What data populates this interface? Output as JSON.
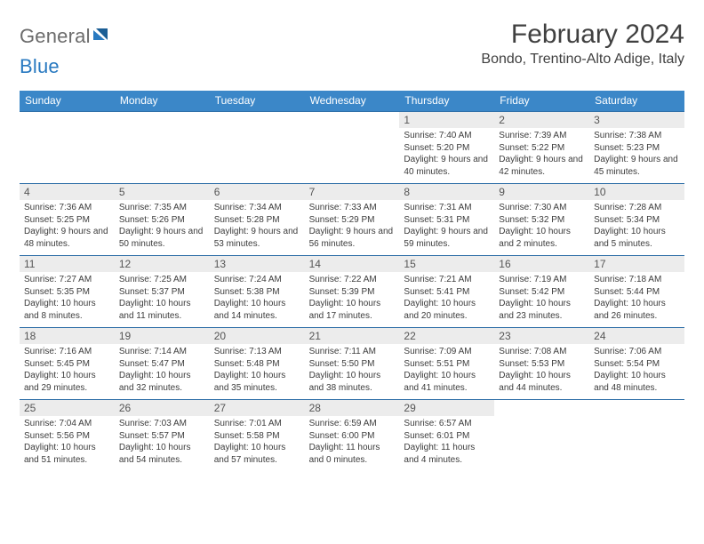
{
  "brand": {
    "word1": "General",
    "word2": "Blue"
  },
  "title": "February 2024",
  "location": "Bondo, Trentino-Alto Adige, Italy",
  "colors": {
    "header_bar": "#3b87c8",
    "week_divider": "#2f6fa8",
    "date_strip": "#ececec",
    "text": "#333333",
    "brand_gray": "#6b6b6b",
    "brand_blue": "#2879c0"
  },
  "layout": {
    "columns": 7,
    "rows": 5
  },
  "weekdays": [
    "Sunday",
    "Monday",
    "Tuesday",
    "Wednesday",
    "Thursday",
    "Friday",
    "Saturday"
  ],
  "weeks": [
    [
      null,
      null,
      null,
      null,
      {
        "n": "1",
        "sr": "7:40 AM",
        "ss": "5:20 PM",
        "dl": "9 hours and 40 minutes."
      },
      {
        "n": "2",
        "sr": "7:39 AM",
        "ss": "5:22 PM",
        "dl": "9 hours and 42 minutes."
      },
      {
        "n": "3",
        "sr": "7:38 AM",
        "ss": "5:23 PM",
        "dl": "9 hours and 45 minutes."
      }
    ],
    [
      {
        "n": "4",
        "sr": "7:36 AM",
        "ss": "5:25 PM",
        "dl": "9 hours and 48 minutes."
      },
      {
        "n": "5",
        "sr": "7:35 AM",
        "ss": "5:26 PM",
        "dl": "9 hours and 50 minutes."
      },
      {
        "n": "6",
        "sr": "7:34 AM",
        "ss": "5:28 PM",
        "dl": "9 hours and 53 minutes."
      },
      {
        "n": "7",
        "sr": "7:33 AM",
        "ss": "5:29 PM",
        "dl": "9 hours and 56 minutes."
      },
      {
        "n": "8",
        "sr": "7:31 AM",
        "ss": "5:31 PM",
        "dl": "9 hours and 59 minutes."
      },
      {
        "n": "9",
        "sr": "7:30 AM",
        "ss": "5:32 PM",
        "dl": "10 hours and 2 minutes."
      },
      {
        "n": "10",
        "sr": "7:28 AM",
        "ss": "5:34 PM",
        "dl": "10 hours and 5 minutes."
      }
    ],
    [
      {
        "n": "11",
        "sr": "7:27 AM",
        "ss": "5:35 PM",
        "dl": "10 hours and 8 minutes."
      },
      {
        "n": "12",
        "sr": "7:25 AM",
        "ss": "5:37 PM",
        "dl": "10 hours and 11 minutes."
      },
      {
        "n": "13",
        "sr": "7:24 AM",
        "ss": "5:38 PM",
        "dl": "10 hours and 14 minutes."
      },
      {
        "n": "14",
        "sr": "7:22 AM",
        "ss": "5:39 PM",
        "dl": "10 hours and 17 minutes."
      },
      {
        "n": "15",
        "sr": "7:21 AM",
        "ss": "5:41 PM",
        "dl": "10 hours and 20 minutes."
      },
      {
        "n": "16",
        "sr": "7:19 AM",
        "ss": "5:42 PM",
        "dl": "10 hours and 23 minutes."
      },
      {
        "n": "17",
        "sr": "7:18 AM",
        "ss": "5:44 PM",
        "dl": "10 hours and 26 minutes."
      }
    ],
    [
      {
        "n": "18",
        "sr": "7:16 AM",
        "ss": "5:45 PM",
        "dl": "10 hours and 29 minutes."
      },
      {
        "n": "19",
        "sr": "7:14 AM",
        "ss": "5:47 PM",
        "dl": "10 hours and 32 minutes."
      },
      {
        "n": "20",
        "sr": "7:13 AM",
        "ss": "5:48 PM",
        "dl": "10 hours and 35 minutes."
      },
      {
        "n": "21",
        "sr": "7:11 AM",
        "ss": "5:50 PM",
        "dl": "10 hours and 38 minutes."
      },
      {
        "n": "22",
        "sr": "7:09 AM",
        "ss": "5:51 PM",
        "dl": "10 hours and 41 minutes."
      },
      {
        "n": "23",
        "sr": "7:08 AM",
        "ss": "5:53 PM",
        "dl": "10 hours and 44 minutes."
      },
      {
        "n": "24",
        "sr": "7:06 AM",
        "ss": "5:54 PM",
        "dl": "10 hours and 48 minutes."
      }
    ],
    [
      {
        "n": "25",
        "sr": "7:04 AM",
        "ss": "5:56 PM",
        "dl": "10 hours and 51 minutes."
      },
      {
        "n": "26",
        "sr": "7:03 AM",
        "ss": "5:57 PM",
        "dl": "10 hours and 54 minutes."
      },
      {
        "n": "27",
        "sr": "7:01 AM",
        "ss": "5:58 PM",
        "dl": "10 hours and 57 minutes."
      },
      {
        "n": "28",
        "sr": "6:59 AM",
        "ss": "6:00 PM",
        "dl": "11 hours and 0 minutes."
      },
      {
        "n": "29",
        "sr": "6:57 AM",
        "ss": "6:01 PM",
        "dl": "11 hours and 4 minutes."
      },
      null,
      null
    ]
  ],
  "labels": {
    "sunrise": "Sunrise: ",
    "sunset": "Sunset: ",
    "daylight": "Daylight: "
  }
}
